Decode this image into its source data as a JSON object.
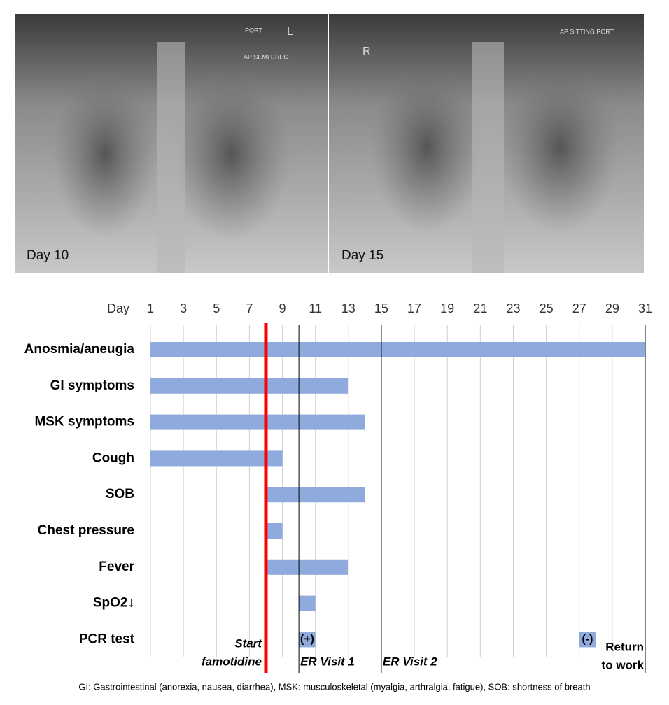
{
  "images": [
    {
      "label": "Day 10",
      "annotations": [
        "PORT",
        "L",
        "AP SEMI ERECT"
      ]
    },
    {
      "label": "Day 15",
      "annotations": [
        "R",
        "AP SITTING PORT"
      ]
    }
  ],
  "chart_data": {
    "type": "gantt",
    "xlabel": "Day",
    "xlim": [
      1,
      31
    ],
    "xticks": [
      1,
      3,
      5,
      7,
      9,
      11,
      13,
      15,
      17,
      19,
      21,
      23,
      25,
      27,
      29,
      31
    ],
    "grid": true,
    "color": "#8faadc",
    "categories": [
      "Anosmia/aneugia",
      "GI symptoms",
      "MSK symptoms",
      "Cough",
      "SOB",
      "Chest pressure",
      "Fever",
      "SpO2↓",
      "PCR test"
    ],
    "start": [
      1,
      1,
      1,
      1,
      8,
      8,
      8,
      10,
      null
    ],
    "end": [
      31,
      13,
      14,
      9,
      14,
      9,
      13,
      11,
      null
    ],
    "tests": [
      {
        "start": 10,
        "end": 11,
        "label": "(+)"
      },
      {
        "start": 27,
        "end": 28,
        "label": "(-)"
      }
    ],
    "events": [
      {
        "x": 8,
        "label": [
          "Start",
          "famotidine"
        ],
        "color": "#ff0000"
      },
      {
        "x": 10,
        "label": [
          "ER Visit 1"
        ],
        "color": "#000000"
      },
      {
        "x": 15,
        "label": [
          "ER Visit 2"
        ],
        "color": "#000000"
      },
      {
        "x": 31,
        "label": [
          "Return",
          "to work"
        ],
        "color": "#000000"
      }
    ],
    "footnote": "GI: Gastrointestinal (anorexia, nausea, diarrhea), MSK: musculoskeletal (myalgia, arthralgia, fatigue), SOB: shortness of breath"
  }
}
